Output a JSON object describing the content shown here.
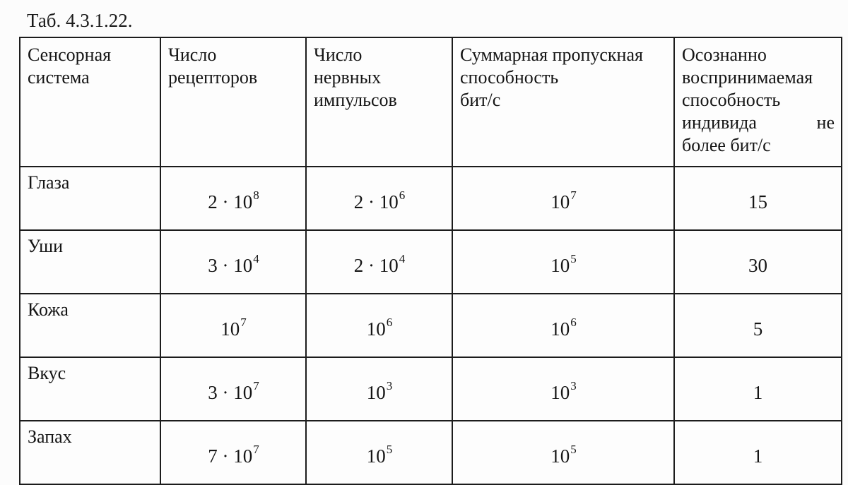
{
  "page": {
    "title": "Таб. 4.3.1.22."
  },
  "colors": {
    "border": "#1c1c1c",
    "text": "#151515",
    "background": "#fcfcfc"
  },
  "table": {
    "headers": [
      {
        "name": "sensory-system",
        "lines": [
          "Сенсорная",
          "система"
        ]
      },
      {
        "name": "receptor-count",
        "lines": [
          "Число",
          "рецепторов"
        ]
      },
      {
        "name": "nerve-impulse-count",
        "lines": [
          "Число",
          "нервных",
          "импульсов"
        ]
      },
      {
        "name": "total-throughput",
        "lines": [
          "Суммарная пропускная",
          "способность",
          "бит/с"
        ]
      },
      {
        "name": "conscious-capacity",
        "lines": [
          "Осознанно",
          "воспринимаемая",
          "способность",
          [
            "индивида",
            "не"
          ],
          "более бит/с"
        ]
      }
    ],
    "rows": [
      {
        "label": "Глаза",
        "values": [
          {
            "base": "2 · 10",
            "sup": "8"
          },
          {
            "base": "2 · 10",
            "sup": "6"
          },
          {
            "base": "10",
            "sup": "7"
          },
          {
            "base": "15",
            "sup": ""
          }
        ]
      },
      {
        "label": "Уши",
        "values": [
          {
            "base": "3 · 10",
            "sup": "4"
          },
          {
            "base": "2 · 10",
            "sup": "4"
          },
          {
            "base": "10",
            "sup": "5"
          },
          {
            "base": "30",
            "sup": ""
          }
        ]
      },
      {
        "label": "Кожа",
        "values": [
          {
            "base": "10",
            "sup": "7"
          },
          {
            "base": "10",
            "sup": "6"
          },
          {
            "base": "10",
            "sup": "6"
          },
          {
            "base": "5",
            "sup": ""
          }
        ]
      },
      {
        "label": "Вкус",
        "values": [
          {
            "base": "3 · 10",
            "sup": "7"
          },
          {
            "base": "10",
            "sup": "3"
          },
          {
            "base": "10",
            "sup": "3"
          },
          {
            "base": "1",
            "sup": ""
          }
        ]
      },
      {
        "label": "Запах",
        "values": [
          {
            "base": "7 · 10",
            "sup": "7"
          },
          {
            "base": "10",
            "sup": "5"
          },
          {
            "base": "10",
            "sup": "5"
          },
          {
            "base": "1",
            "sup": ""
          }
        ]
      }
    ]
  }
}
